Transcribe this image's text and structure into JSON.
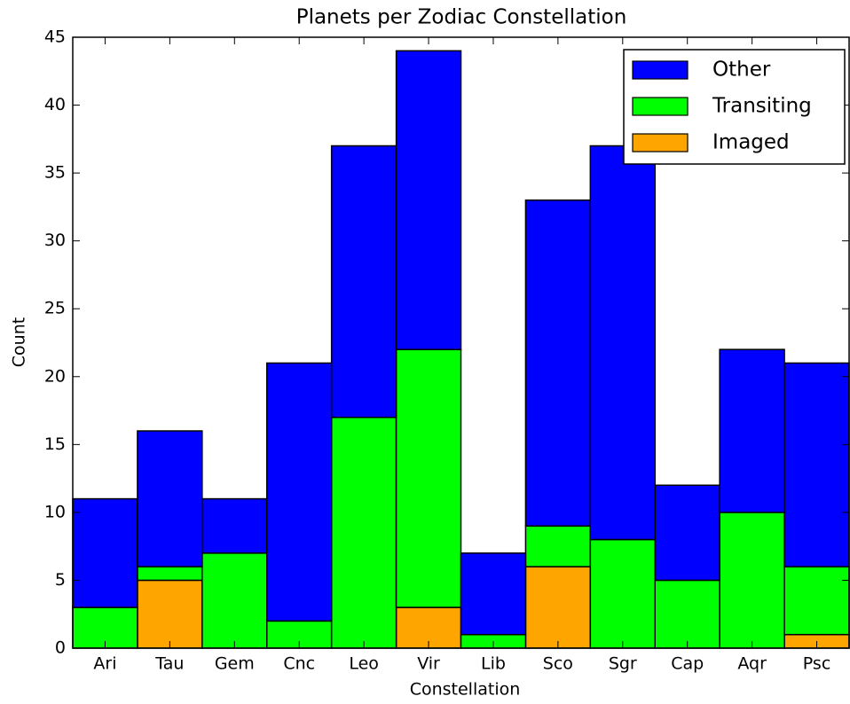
{
  "chart_data": {
    "type": "bar",
    "stacked": true,
    "title": "Planets per Zodiac Constellation",
    "x_label": "Constellation",
    "y_label": "Count",
    "categories": [
      "Ari",
      "Tau",
      "Gem",
      "Cnc",
      "Leo",
      "Vir",
      "Lib",
      "Sco",
      "Sgr",
      "Cap",
      "Aqr",
      "Psc"
    ],
    "series": [
      {
        "name": "Imaged",
        "color": "#ffa500",
        "values": [
          0,
          5,
          0,
          0,
          0,
          3,
          0,
          6,
          0,
          0,
          0,
          1
        ]
      },
      {
        "name": "Transiting",
        "color": "#00ff00",
        "values": [
          3,
          1,
          7,
          2,
          17,
          19,
          1,
          3,
          8,
          5,
          10,
          5
        ]
      },
      {
        "name": "Other",
        "color": "#0000ff",
        "values": [
          8,
          10,
          4,
          19,
          20,
          22,
          6,
          24,
          29,
          7,
          12,
          15
        ]
      }
    ],
    "ylim": [
      0,
      45
    ],
    "yticks": [
      0,
      5,
      10,
      15,
      20,
      25,
      30,
      35,
      40,
      45
    ],
    "legend": "upper right"
  }
}
